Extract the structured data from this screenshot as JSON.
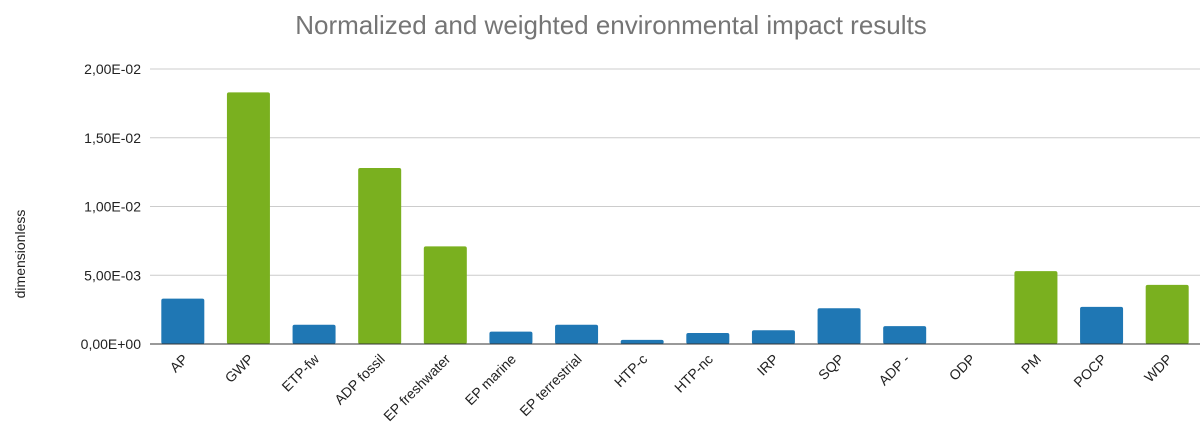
{
  "chart_data": {
    "type": "bar",
    "title": "Normalized and weighted environmental impact results",
    "xlabel": "",
    "ylabel": "dimensionless",
    "ylim": [
      0,
      0.02
    ],
    "yticks": [
      {
        "value": 0,
        "label": "0,00E+00"
      },
      {
        "value": 0.005,
        "label": "5,00E-03"
      },
      {
        "value": 0.01,
        "label": "1,00E-02"
      },
      {
        "value": 0.015,
        "label": "1,50E-02"
      },
      {
        "value": 0.02,
        "label": "2,00E-02"
      }
    ],
    "grid": true,
    "legend": "none",
    "colors": {
      "blue": "#1f77b4",
      "green": "#7ab01f"
    },
    "categories": [
      "AP",
      "GWP",
      "ETP-fw",
      "ADP fossil",
      "EP freshwater",
      "EP marine",
      "EP terrestrial",
      "HTP-c",
      "HTP-nc",
      "IRP",
      "SQP",
      "ADP -",
      "ODP",
      "PM",
      "POCP",
      "WDP"
    ],
    "values": [
      0.0033,
      0.0183,
      0.0014,
      0.0128,
      0.0071,
      0.0009,
      0.0014,
      0.0003,
      0.0008,
      0.001,
      0.0026,
      0.0013,
      0.0,
      0.0053,
      0.0027,
      0.0043
    ],
    "bar_colors": [
      "blue",
      "green",
      "blue",
      "green",
      "green",
      "blue",
      "blue",
      "blue",
      "blue",
      "blue",
      "blue",
      "blue",
      "blue",
      "green",
      "blue",
      "green"
    ]
  }
}
